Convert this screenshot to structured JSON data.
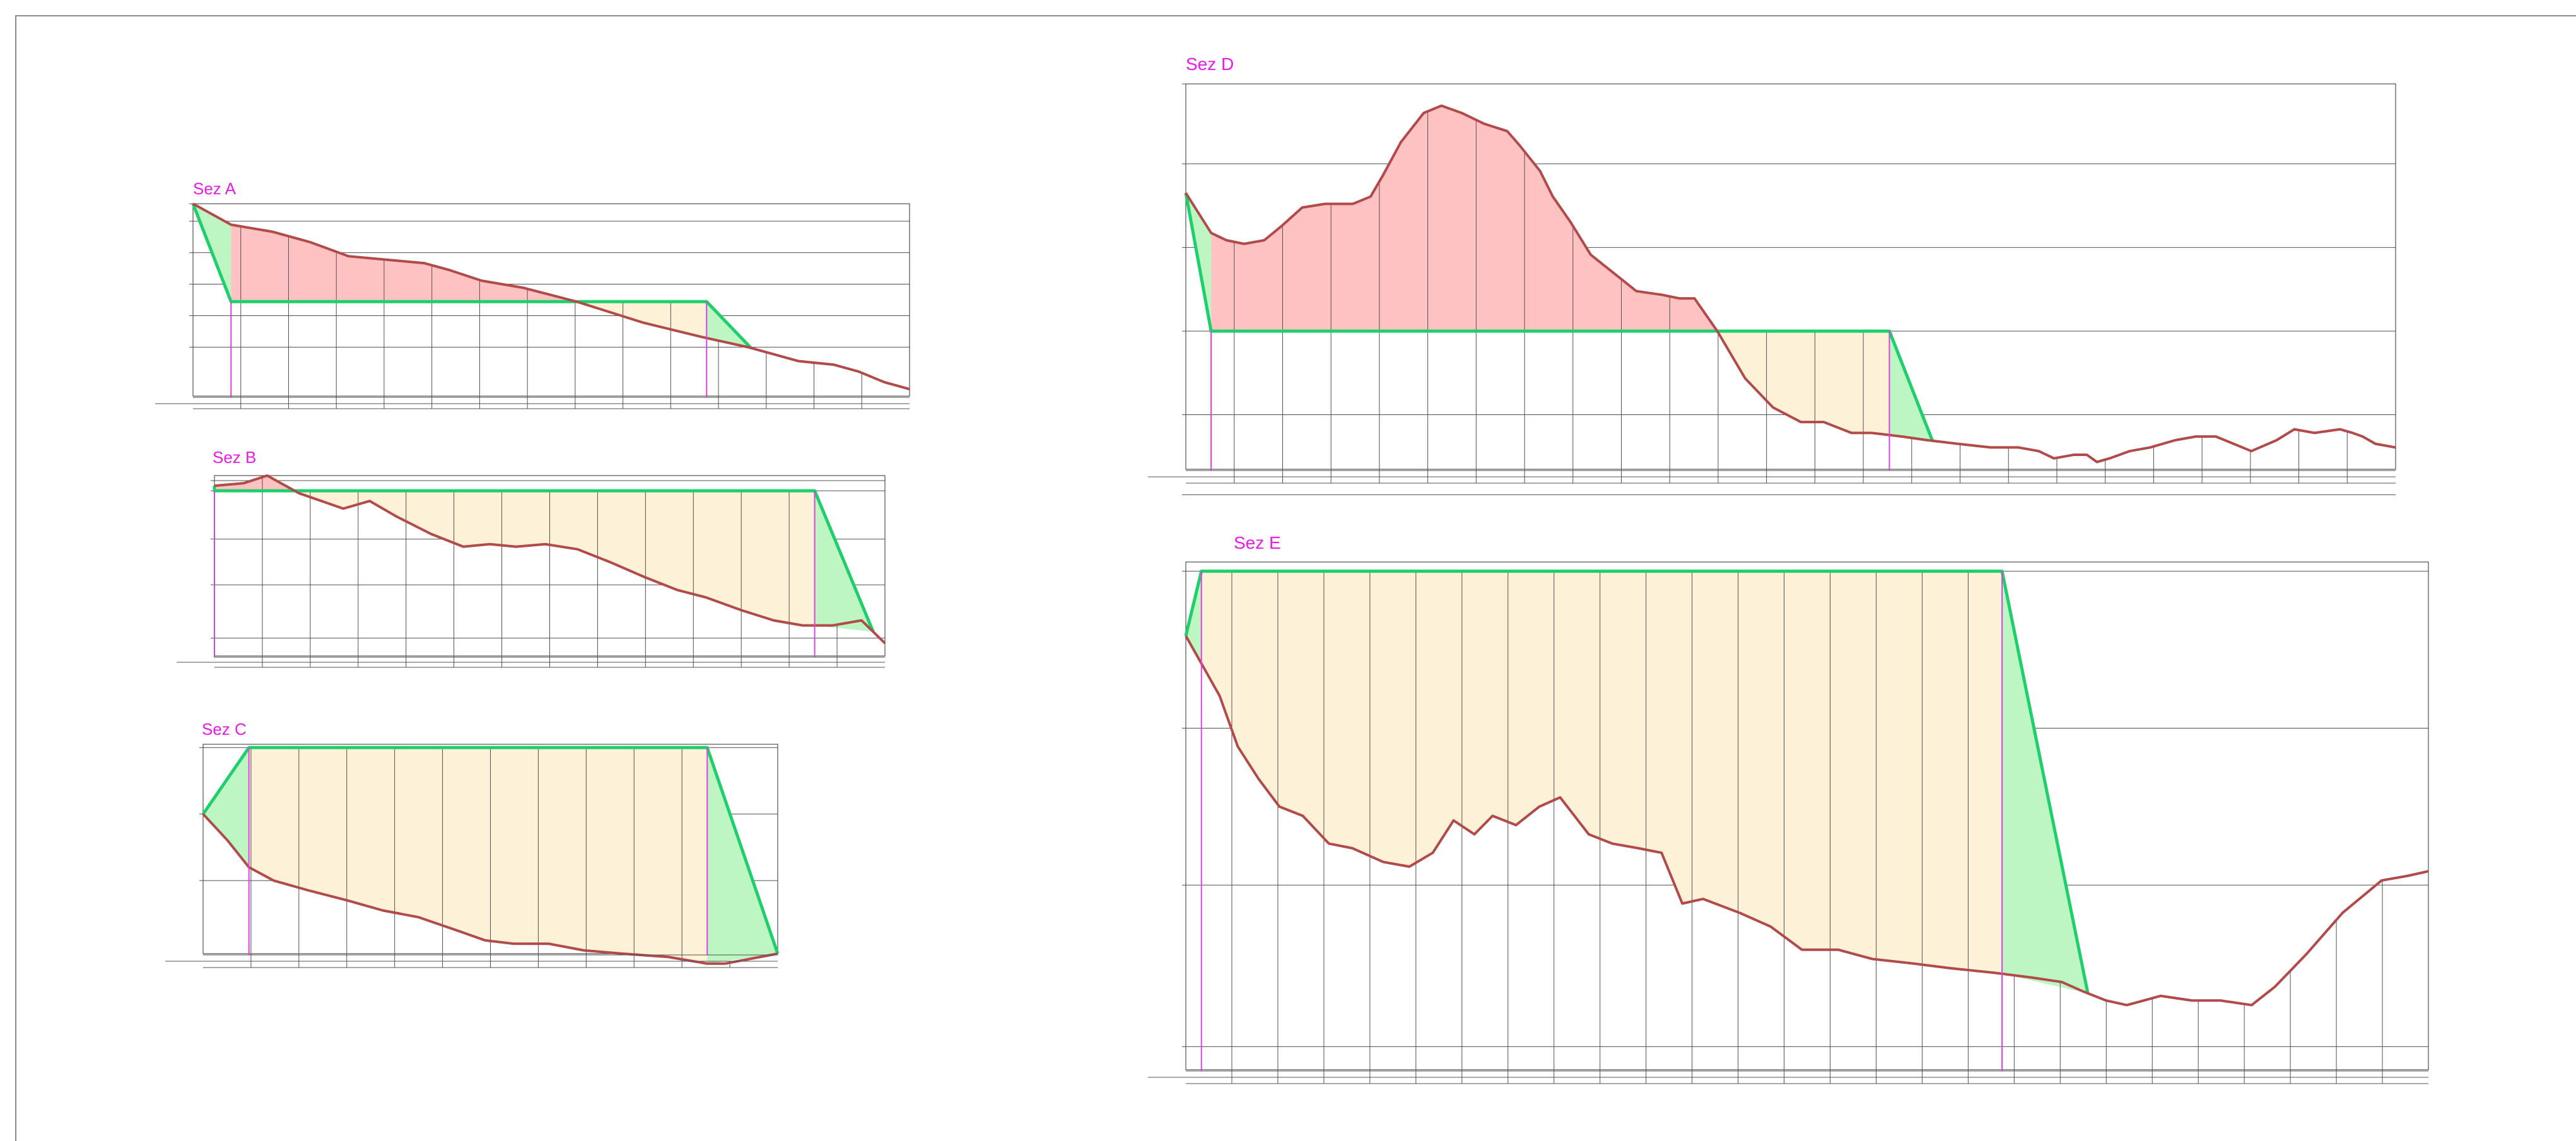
{
  "colors": {
    "title": "#e61ce6",
    "ground_line": "#b24a4a",
    "cut_fill": "#ffc2c2",
    "fill_fill": "#fdf1d8",
    "embankment_line": "#1fcf6c",
    "embankment_fill": "#bdf5c3",
    "grid": "#505050",
    "marker": "#e040e0"
  },
  "sections": [
    {
      "name": "section-a",
      "title": "Sez A",
      "plan_level": 180,
      "yrange": [
        153,
        208
      ],
      "ytick_values": [
        208,
        203,
        194,
        185,
        176,
        167
      ],
      "ground": [
        [
          0,
          208
        ],
        [
          12,
          202
        ],
        [
          25,
          200
        ],
        [
          37,
          197
        ],
        [
          49,
          193
        ],
        [
          61,
          192
        ],
        [
          73,
          191
        ],
        [
          81,
          189
        ],
        [
          91,
          186
        ],
        [
          104,
          184
        ],
        [
          121,
          180
        ],
        [
          142,
          174
        ],
        [
          160,
          170
        ],
        [
          175,
          167
        ],
        [
          191,
          163
        ],
        [
          202,
          162
        ],
        [
          210,
          160
        ],
        [
          218,
          157
        ],
        [
          226,
          155
        ]
      ],
      "left_toe": 12,
      "right_toe": 162,
      "right_end": 176,
      "xmax": 226
    },
    {
      "name": "section-b",
      "title": "Sez B",
      "plan_level": 197,
      "yrange": [
        132,
        203
      ],
      "ytick_values": [
        201,
        197,
        178,
        160,
        139
      ],
      "ground": [
        [
          0,
          199
        ],
        [
          10,
          200
        ],
        [
          18,
          203
        ],
        [
          29,
          196
        ],
        [
          44,
          190
        ],
        [
          53,
          193
        ],
        [
          62,
          187
        ],
        [
          74,
          180
        ],
        [
          85,
          175
        ],
        [
          94,
          176
        ],
        [
          103,
          175
        ],
        [
          113,
          176
        ],
        [
          124,
          174
        ],
        [
          135,
          169
        ],
        [
          147,
          163
        ],
        [
          158,
          158
        ],
        [
          168,
          155
        ],
        [
          180,
          150
        ],
        [
          191,
          146
        ],
        [
          201,
          144
        ],
        [
          211,
          144
        ],
        [
          221,
          146
        ],
        [
          229,
          137
        ]
      ],
      "left_toe": 0,
      "right_toe": 205,
      "right_end": 225,
      "xmax": 229
    },
    {
      "name": "section-c",
      "title": "Sez C",
      "plan_level": 184,
      "yrange": [
        122,
        185
      ],
      "ytick_values": [
        184,
        164,
        144
      ],
      "ground": [
        [
          0,
          164
        ],
        [
          7,
          156
        ],
        [
          13,
          148
        ],
        [
          20,
          144
        ],
        [
          30,
          141
        ],
        [
          41,
          138
        ],
        [
          51,
          135
        ],
        [
          61,
          133
        ],
        [
          72,
          129
        ],
        [
          80,
          126
        ],
        [
          88,
          125
        ],
        [
          98,
          125
        ],
        [
          108,
          123
        ],
        [
          119,
          122
        ],
        [
          132,
          121
        ],
        [
          143,
          119
        ],
        [
          148,
          119
        ],
        [
          158,
          121
        ],
        [
          163,
          122
        ]
      ],
      "left_toe": 13,
      "right_toe": 143,
      "right_end": 163,
      "xmax": 163
    },
    {
      "name": "section-d",
      "title": "Sez D",
      "plan_level": 178,
      "yrange": [
        140,
        246
      ],
      "ytick_values": [
        246,
        224,
        201,
        178,
        155,
        133
      ],
      "ground": [
        [
          0,
          216
        ],
        [
          10,
          205
        ],
        [
          16,
          203
        ],
        [
          23,
          202
        ],
        [
          31,
          203
        ],
        [
          38,
          207
        ],
        [
          46,
          212
        ],
        [
          55,
          213
        ],
        [
          66,
          213
        ],
        [
          73,
          215
        ],
        [
          78,
          221
        ],
        [
          85,
          230
        ],
        [
          94,
          238
        ],
        [
          101,
          240
        ],
        [
          109,
          238
        ],
        [
          118,
          235
        ],
        [
          127,
          233
        ],
        [
          132,
          229
        ],
        [
          140,
          222
        ],
        [
          145,
          215
        ],
        [
          152,
          208
        ],
        [
          160,
          199
        ],
        [
          169,
          194
        ],
        [
          178,
          189
        ],
        [
          188,
          188
        ],
        [
          195,
          187
        ],
        [
          201,
          187
        ],
        [
          205,
          183
        ],
        [
          210,
          178
        ],
        [
          221,
          165
        ],
        [
          232,
          157
        ],
        [
          243,
          153
        ],
        [
          252,
          153
        ],
        [
          263,
          150
        ],
        [
          271,
          150
        ],
        [
          283,
          149
        ],
        [
          293,
          148
        ],
        [
          305,
          147
        ],
        [
          318,
          146
        ],
        [
          329,
          146
        ],
        [
          337,
          145
        ],
        [
          343,
          143
        ],
        [
          351,
          144
        ],
        [
          356,
          144
        ],
        [
          360,
          142
        ],
        [
          365,
          143
        ],
        [
          373,
          145
        ],
        [
          381,
          146
        ],
        [
          391,
          148
        ],
        [
          399,
          149
        ],
        [
          407,
          149
        ],
        [
          414,
          147
        ],
        [
          421,
          145
        ],
        [
          431,
          148
        ],
        [
          438,
          151
        ],
        [
          446,
          150
        ],
        [
          456,
          151
        ],
        [
          461,
          150
        ],
        [
          465,
          149
        ],
        [
          470,
          147
        ],
        [
          478,
          146
        ]
      ],
      "left_toe": 10,
      "right_toe": 278,
      "right_end": 295,
      "xmax": 478
    },
    {
      "name": "section-e",
      "title": "Sez E",
      "plan_level": 303,
      "yrange": [
        195,
        305
      ],
      "ytick_values": [
        303,
        269,
        235,
        200
      ],
      "ground": [
        [
          0,
          289
        ],
        [
          7,
          282
        ],
        [
          13,
          276
        ],
        [
          20,
          265
        ],
        [
          28,
          258
        ],
        [
          36,
          252
        ],
        [
          45,
          250
        ],
        [
          55,
          244
        ],
        [
          64,
          243
        ],
        [
          76,
          240
        ],
        [
          86,
          239
        ],
        [
          95,
          242
        ],
        [
          103,
          249
        ],
        [
          111,
          246
        ],
        [
          118,
          250
        ],
        [
          127,
          248
        ],
        [
          136,
          252
        ],
        [
          144,
          254
        ],
        [
          155,
          246
        ],
        [
          164,
          244
        ],
        [
          174,
          243
        ],
        [
          183,
          242
        ],
        [
          191,
          231
        ],
        [
          199,
          232
        ],
        [
          213,
          229
        ],
        [
          225,
          226
        ],
        [
          237,
          221
        ],
        [
          251,
          221
        ],
        [
          264,
          219
        ],
        [
          280,
          218
        ],
        [
          294,
          217
        ],
        [
          311,
          216
        ],
        [
          325,
          215
        ],
        [
          337,
          214
        ],
        [
          345,
          212
        ],
        [
          354,
          210
        ],
        [
          362,
          209
        ],
        [
          375,
          211
        ],
        [
          387,
          210
        ],
        [
          398,
          210
        ],
        [
          410,
          209
        ],
        [
          419,
          213
        ],
        [
          431,
          220
        ],
        [
          445,
          229
        ],
        [
          460,
          236
        ],
        [
          470,
          237
        ],
        [
          478,
          238
        ]
      ],
      "left_toe": 6,
      "right_toe": 314,
      "right_end": 347,
      "xmax": 478
    }
  ]
}
